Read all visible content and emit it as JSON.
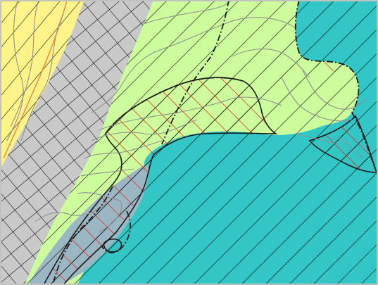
{
  "map": {
    "zone_colors": {
      "yellow": "#fff48a",
      "gray": "#c9c9c9",
      "light_green": "#ccfc9c",
      "teal": "#33c6c6",
      "blue_gray": "#9ab7c3"
    },
    "hatch_colors": {
      "black": "#111111",
      "red": "#e8261e"
    },
    "contour_color": "#8f8f8f",
    "boundary_color": "#1a1a1a",
    "orange_line_color": "#f08a3a"
  }
}
